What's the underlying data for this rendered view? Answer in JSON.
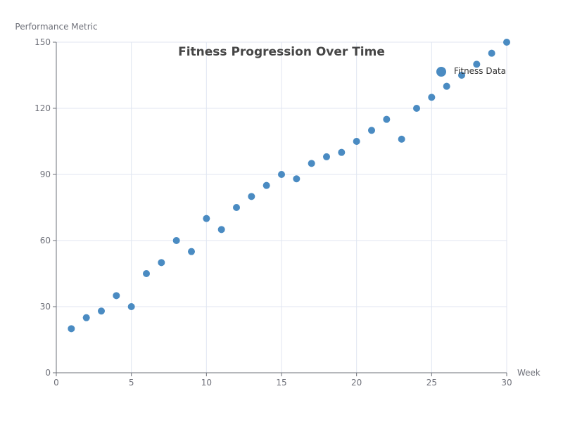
{
  "chart_data": {
    "type": "scatter",
    "title": "Fitness Progression Over Time",
    "xlabel": "Week",
    "ylabel": "Performance Metric",
    "xlim": [
      0,
      30
    ],
    "ylim": [
      0,
      150
    ],
    "x_ticks": [
      "0",
      "5",
      "10",
      "15",
      "20",
      "25",
      "30"
    ],
    "y_ticks": [
      "0",
      "30",
      "60",
      "90",
      "120",
      "150"
    ],
    "grid": true,
    "legend_position": "top-right",
    "series": [
      {
        "name": "Fitness Data",
        "color": "#4a8bc2",
        "points": [
          {
            "x": 1,
            "y": 20
          },
          {
            "x": 2,
            "y": 25
          },
          {
            "x": 3,
            "y": 28
          },
          {
            "x": 4,
            "y": 35
          },
          {
            "x": 5,
            "y": 30
          },
          {
            "x": 6,
            "y": 45
          },
          {
            "x": 7,
            "y": 50
          },
          {
            "x": 8,
            "y": 60
          },
          {
            "x": 9,
            "y": 55
          },
          {
            "x": 10,
            "y": 70
          },
          {
            "x": 11,
            "y": 65
          },
          {
            "x": 12,
            "y": 75
          },
          {
            "x": 13,
            "y": 80
          },
          {
            "x": 14,
            "y": 85
          },
          {
            "x": 15,
            "y": 90
          },
          {
            "x": 16,
            "y": 88
          },
          {
            "x": 17,
            "y": 95
          },
          {
            "x": 18,
            "y": 98
          },
          {
            "x": 19,
            "y": 100
          },
          {
            "x": 20,
            "y": 105
          },
          {
            "x": 21,
            "y": 110
          },
          {
            "x": 22,
            "y": 115
          },
          {
            "x": 23,
            "y": 106
          },
          {
            "x": 24,
            "y": 120
          },
          {
            "x": 25,
            "y": 125
          },
          {
            "x": 26,
            "y": 130
          },
          {
            "x": 27,
            "y": 135
          },
          {
            "x": 28,
            "y": 140
          },
          {
            "x": 29,
            "y": 145
          },
          {
            "x": 30,
            "y": 150
          }
        ]
      }
    ]
  }
}
